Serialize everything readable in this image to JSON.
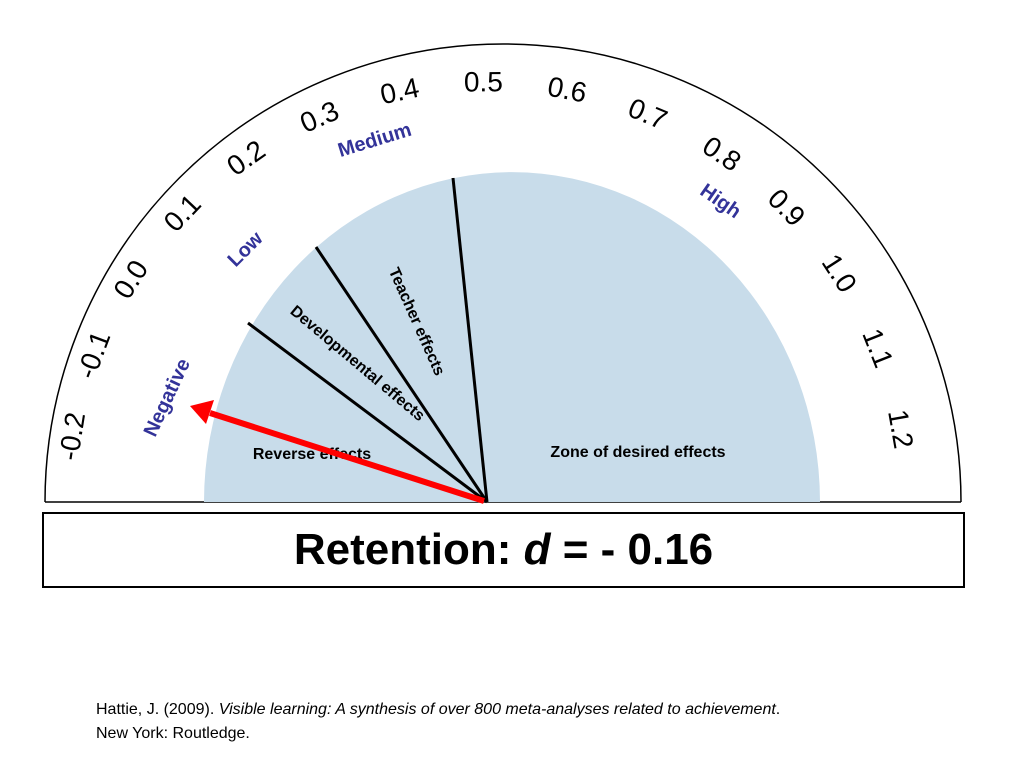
{
  "gauge": {
    "scale_labels": [
      "-0.2",
      "-0.1",
      "0.0",
      "0.1",
      "0.2",
      "0.3",
      "0.4",
      "0.5",
      "0.6",
      "0.7",
      "0.8",
      "0.9",
      "1.0",
      "1.1",
      "1.2"
    ],
    "zones": [
      "Negative",
      "Low",
      "Medium",
      "High"
    ],
    "regions": [
      "Reverse effects",
      "Developmental effects",
      "Teacher effects",
      "Zone of desired effects"
    ]
  },
  "result": {
    "label": "Retention:",
    "symbol": "d",
    "value_text": "= - 0.16"
  },
  "citation": {
    "author": "Hattie, J. (2009).",
    "book": "Visible learning: A synthesis of over 800 meta-analyses related to achievement",
    "end": ".",
    "publisher": "New York: Routledge."
  }
}
